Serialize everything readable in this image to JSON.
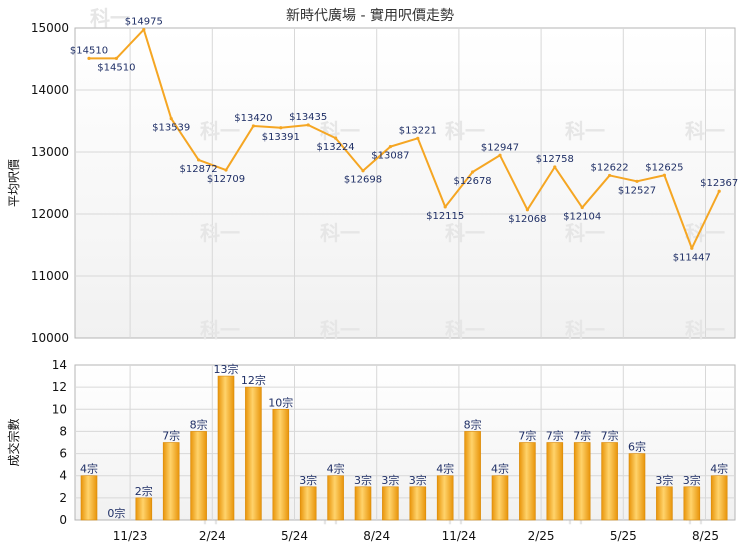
{
  "chart_data": [
    {
      "type": "line",
      "title": "新時代廣場 - 實用呎價走勢",
      "ylabel": "平均呎價",
      "ylim": [
        10000,
        15000
      ],
      "yticks": [
        "10000",
        "11000",
        "12000",
        "13000",
        "14000",
        "15000"
      ],
      "x_tick_labels": [
        "11/23",
        "2/24",
        "5/24",
        "8/24",
        "11/24",
        "2/25",
        "5/25",
        "8/25"
      ],
      "x_tick_index": [
        2,
        5,
        8,
        11,
        14,
        17,
        20,
        23
      ],
      "grid": true,
      "color": "#f5a623",
      "values": [
        14510,
        14510,
        14975,
        13539,
        12872,
        12709,
        13420,
        13391,
        13435,
        13224,
        12698,
        13087,
        13221,
        12115,
        12678,
        12947,
        12068,
        12758,
        12104,
        12622,
        12527,
        12625,
        11447,
        12367
      ],
      "labels": [
        "$14510",
        "$14510",
        "$14975",
        "$13539",
        "$12872",
        "$12709",
        "$13420",
        "$13391",
        "$13435",
        "$13224",
        "$12698",
        "$13087",
        "$13221",
        "$12115",
        "$12678",
        "$12947",
        "$12068",
        "$12758",
        "$12104",
        "$12622",
        "$12527",
        "$12625",
        "$11447",
        "$12367"
      ]
    },
    {
      "type": "bar",
      "ylabel": "成交宗數",
      "ylim": [
        0,
        14
      ],
      "yticks": [
        "0",
        "2",
        "4",
        "6",
        "8",
        "10",
        "12",
        "14"
      ],
      "x_tick_labels": [
        "11/23",
        "2/24",
        "5/24",
        "8/24",
        "11/24",
        "2/25",
        "5/25",
        "8/25"
      ],
      "grid": true,
      "color": "#f5a623",
      "values": [
        4,
        0,
        2,
        7,
        8,
        13,
        12,
        10,
        3,
        4,
        3,
        3,
        3,
        4,
        8,
        4,
        7,
        7,
        7,
        7,
        6,
        3,
        3,
        4
      ],
      "labels": [
        "4宗",
        "0宗",
        "2宗",
        "7宗",
        "8宗",
        "13宗",
        "12宗",
        "10宗",
        "3宗",
        "4宗",
        "3宗",
        "3宗",
        "3宗",
        "4宗",
        "8宗",
        "4宗",
        "7宗",
        "7宗",
        "7宗",
        "7宗",
        "6宗",
        "3宗",
        "3宗",
        "4宗"
      ]
    }
  ],
  "watermark": "科一"
}
